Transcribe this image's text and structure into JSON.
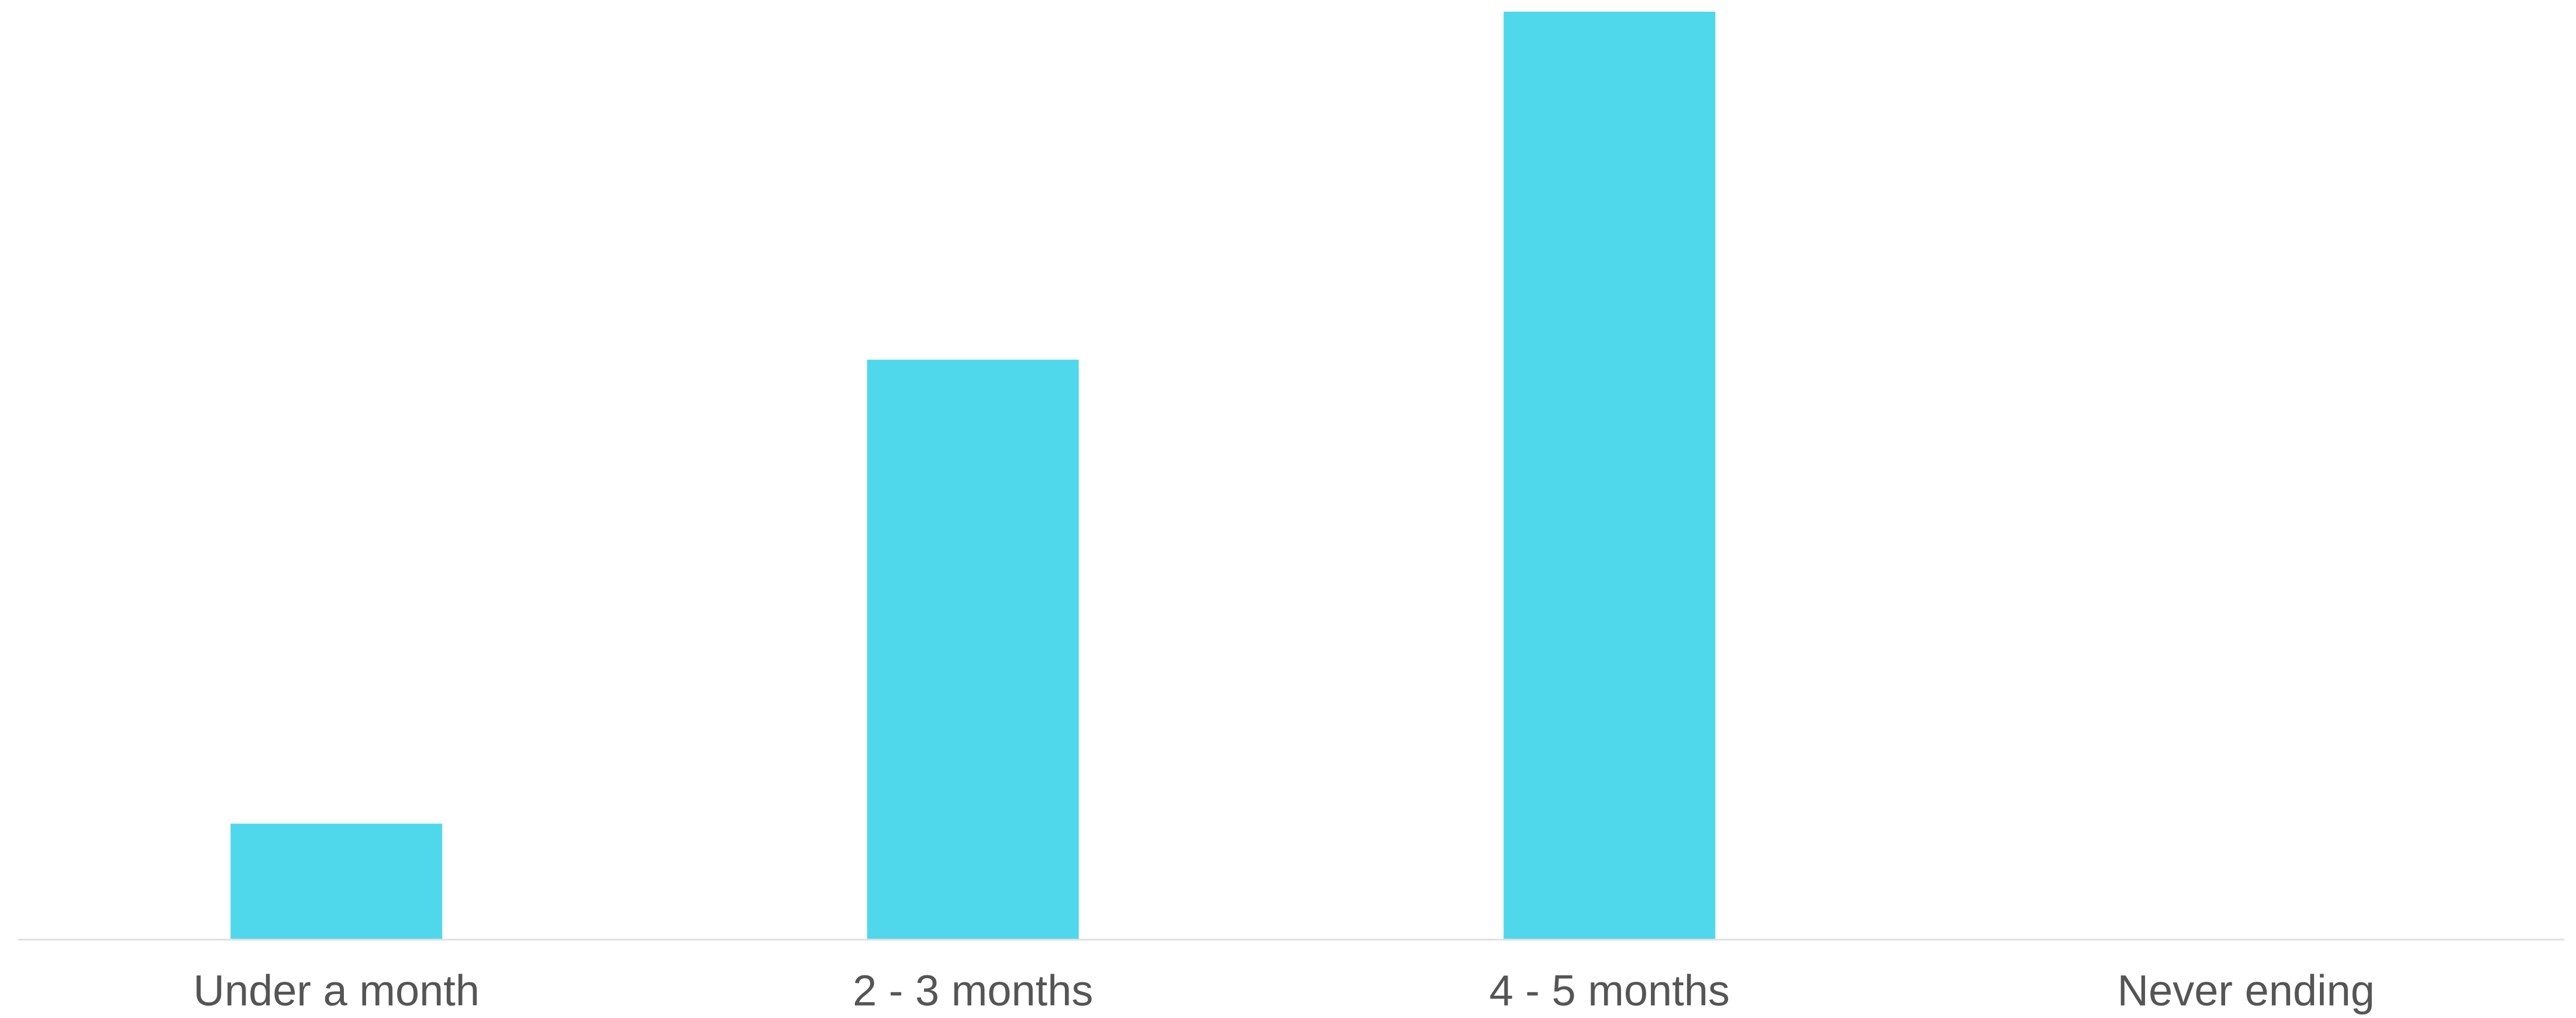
{
  "chart_data": {
    "type": "bar",
    "categories": [
      "Under a month",
      "2 - 3 months",
      "4 - 5 months",
      "Never ending"
    ],
    "values": [
      1,
      5,
      8,
      0
    ],
    "color": "#4fd8ec",
    "ylim": [
      0,
      8
    ],
    "grid": false
  }
}
